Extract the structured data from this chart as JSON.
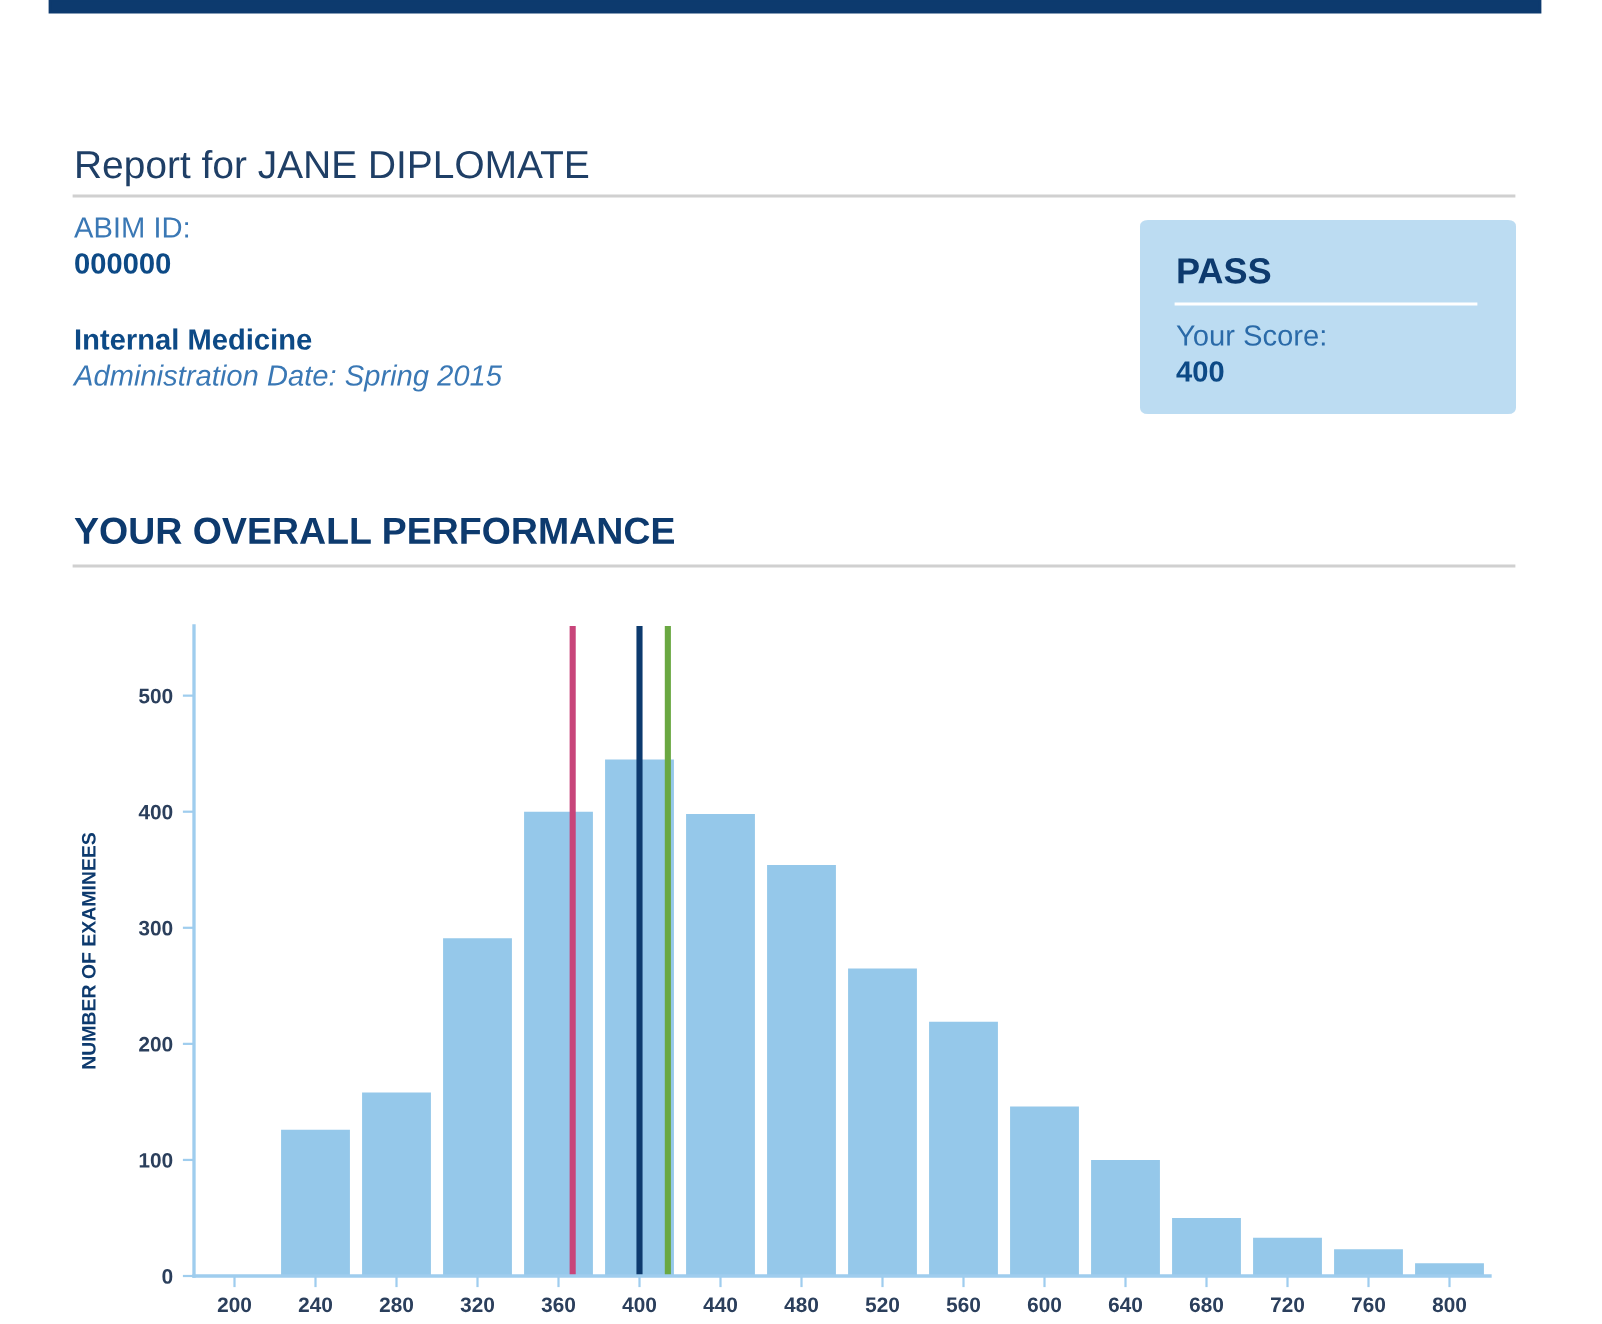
{
  "chart_data": {
    "type": "histogram",
    "title": "YOUR OVERALL PERFORMANCE",
    "ylabel": "NUMBER OF EXAMINEES",
    "annotations": [
      "Report for JANE DIPLOMATE",
      "ABIM ID:",
      "000000",
      "Internal Medicine",
      "Administration Date: Spring 2015",
      "PASS",
      "Your Score:",
      "400"
    ],
    "bins": [
      180,
      220,
      260,
      300,
      340,
      380,
      420,
      460,
      500,
      540,
      580,
      620,
      660,
      700,
      740,
      780,
      820
    ],
    "values": [
      0,
      126,
      158,
      291,
      400,
      445,
      398,
      354,
      265,
      219,
      146,
      100,
      50,
      33,
      23,
      11
    ],
    "color": "#95c8ea",
    "xlim": [
      180,
      820
    ],
    "ylim": [
      0,
      560
    ],
    "xticks": [
      200,
      240,
      280,
      320,
      360,
      400,
      440,
      480,
      520,
      560,
      600,
      640,
      680,
      720,
      760,
      800
    ],
    "yticks": [
      0,
      100,
      200,
      300,
      400,
      500
    ],
    "ref_lines": [
      {
        "axis": "x",
        "value": 367,
        "color": "#c8457a"
      },
      {
        "axis": "x",
        "value": 400,
        "color": "#0d3a6e"
      },
      {
        "axis": "x",
        "value": 414,
        "color": "#6aa842"
      }
    ],
    "grid": false,
    "legend": false
  }
}
